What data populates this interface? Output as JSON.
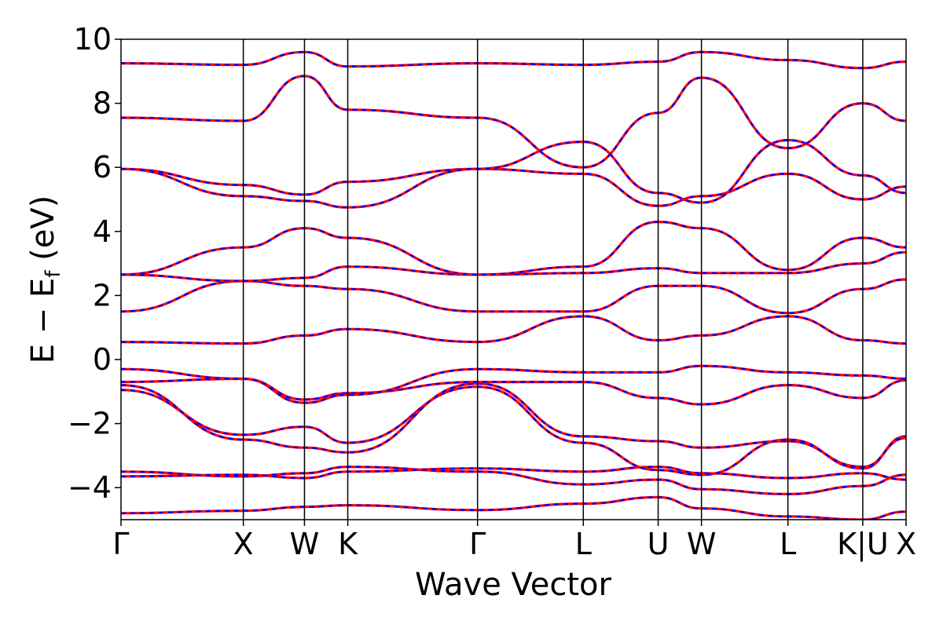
{
  "chart_data": {
    "type": "line",
    "title": "",
    "xlabel": "Wave Vector",
    "ylabel": {
      "main": "E − E",
      "sub": "f",
      "tail": " (eV)"
    },
    "ylim": [
      -5,
      10
    ],
    "yticks": [
      10,
      8,
      6,
      4,
      2,
      0,
      -2,
      -4
    ],
    "ytick_labels": [
      "10",
      "8",
      "6",
      "4",
      "2",
      "0",
      "−2",
      "−4"
    ],
    "kpath": [
      {
        "label": "Γ",
        "x": 0.0
      },
      {
        "label": "X",
        "x": 1.0
      },
      {
        "label": "W",
        "x": 1.5
      },
      {
        "label": "K",
        "x": 1.854
      },
      {
        "label": "Γ",
        "x": 2.915
      },
      {
        "label": "L",
        "x": 3.78
      },
      {
        "label": "U",
        "x": 4.392
      },
      {
        "label": "W",
        "x": 4.746
      },
      {
        "label": "L",
        "x": 5.453
      },
      {
        "label": "K|U",
        "x": 6.065
      },
      {
        "label": "X",
        "x": 6.419
      }
    ],
    "series_colors": {
      "solid": "#ff0000",
      "dashed": "#0000ff"
    },
    "series": [
      {
        "values": [
          -4.8,
          -4.72,
          -4.6,
          -4.55,
          -4.7,
          -4.5,
          -4.3,
          -4.65,
          -4.9,
          -5.0,
          -4.75
        ]
      },
      {
        "values": [
          -3.5,
          -3.65,
          -3.55,
          -3.35,
          -3.5,
          -3.9,
          -3.75,
          -4.05,
          -4.2,
          -3.95,
          -3.6
        ]
      },
      {
        "values": [
          -3.65,
          -3.6,
          -3.7,
          -3.5,
          -3.4,
          -3.5,
          -3.35,
          -3.55,
          -3.7,
          -3.55,
          -3.75
        ]
      },
      {
        "values": [
          -0.95,
          -2.35,
          -2.1,
          -2.6,
          -0.85,
          -2.6,
          -3.45,
          -3.6,
          -2.5,
          -3.4,
          -2.4
        ]
      },
      {
        "values": [
          -0.8,
          -2.5,
          -2.75,
          -2.9,
          -0.75,
          -2.4,
          -2.55,
          -2.75,
          -2.55,
          -3.35,
          -2.45
        ]
      },
      {
        "values": [
          -0.7,
          -0.6,
          -1.25,
          -1.05,
          -0.7,
          -0.7,
          -1.2,
          -1.4,
          -0.8,
          -1.2,
          -0.65
        ]
      },
      {
        "values": [
          -0.3,
          -0.6,
          -1.35,
          -1.1,
          -0.3,
          -0.4,
          -0.4,
          -0.2,
          -0.4,
          -0.5,
          -0.6
        ]
      },
      {
        "values": [
          0.55,
          0.5,
          0.75,
          0.95,
          0.55,
          1.35,
          0.6,
          0.75,
          1.35,
          0.6,
          0.5
        ]
      },
      {
        "values": [
          1.5,
          2.45,
          2.3,
          2.2,
          1.5,
          1.5,
          2.3,
          2.3,
          1.45,
          2.2,
          2.5
        ]
      },
      {
        "values": [
          2.65,
          2.45,
          2.55,
          2.9,
          2.65,
          2.7,
          2.85,
          2.7,
          2.7,
          3.0,
          3.35
        ]
      },
      {
        "values": [
          2.65,
          3.5,
          4.1,
          3.8,
          2.65,
          2.9,
          4.3,
          4.1,
          2.8,
          3.8,
          3.5
        ]
      },
      {
        "values": [
          5.95,
          5.45,
          5.15,
          5.55,
          5.95,
          5.8,
          4.8,
          5.1,
          5.8,
          5.0,
          5.4
        ]
      },
      {
        "values": [
          5.95,
          5.1,
          4.95,
          4.75,
          5.95,
          6.8,
          5.2,
          4.9,
          6.85,
          5.75,
          5.2
        ]
      },
      {
        "values": [
          7.55,
          7.45,
          8.85,
          7.8,
          7.55,
          6.0,
          7.7,
          8.8,
          6.6,
          8.0,
          7.45
        ]
      },
      {
        "values": [
          9.25,
          9.2,
          9.6,
          9.15,
          9.25,
          9.2,
          9.3,
          9.6,
          9.35,
          9.1,
          9.3
        ]
      }
    ]
  }
}
